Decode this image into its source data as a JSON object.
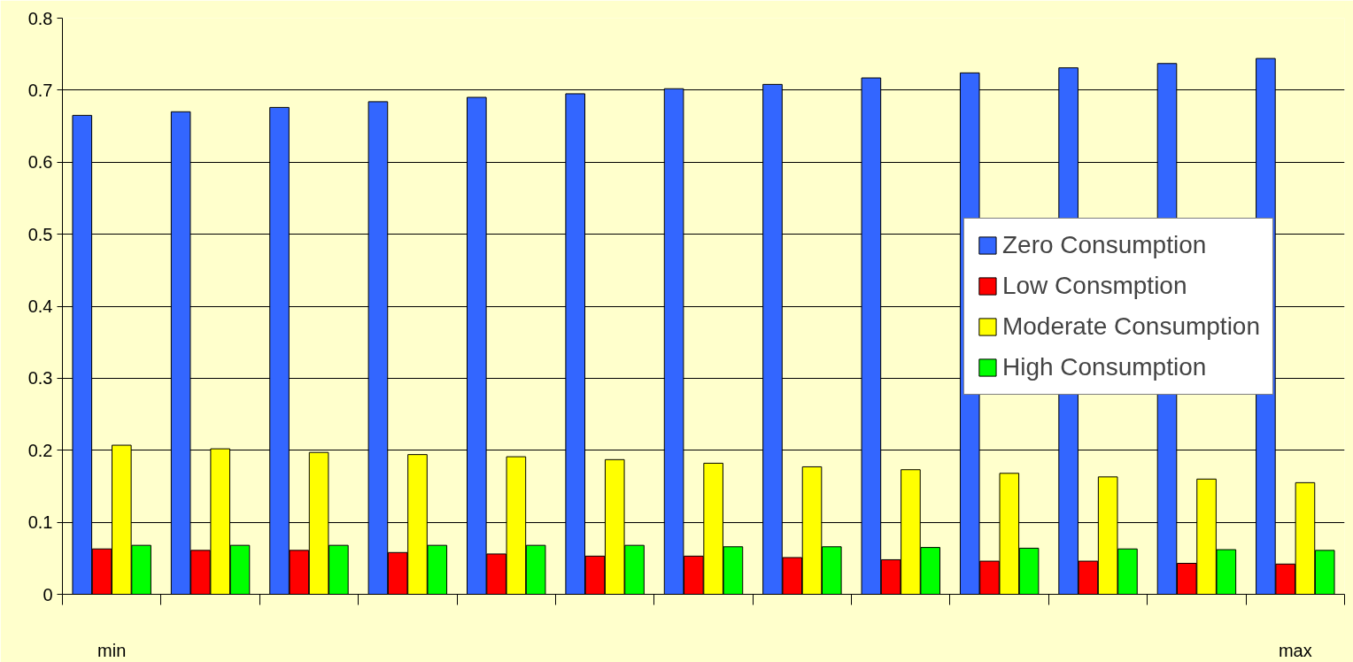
{
  "chart_data": {
    "type": "bar",
    "categories": [
      "min",
      null,
      null,
      null,
      null,
      null,
      null,
      null,
      null,
      null,
      null,
      null,
      "max"
    ],
    "series": [
      {
        "name": "Zero Consumption",
        "color": "#3366ff",
        "values": [
          0.665,
          0.67,
          0.676,
          0.684,
          0.69,
          0.695,
          0.702,
          0.708,
          0.717,
          0.724,
          0.731,
          0.737,
          0.744
        ]
      },
      {
        "name": "Low Consmption",
        "color": "#ff0000",
        "values": [
          0.063,
          0.061,
          0.061,
          0.058,
          0.056,
          0.053,
          0.053,
          0.051,
          0.048,
          0.046,
          0.046,
          0.043,
          0.042
        ]
      },
      {
        "name": "Moderate Consumption",
        "color": "#ffff00",
        "values": [
          0.207,
          0.202,
          0.197,
          0.194,
          0.191,
          0.187,
          0.182,
          0.177,
          0.173,
          0.168,
          0.163,
          0.16,
          0.155
        ]
      },
      {
        "name": "High Consumption",
        "color": "#00ff00",
        "values": [
          0.068,
          0.068,
          0.068,
          0.068,
          0.068,
          0.068,
          0.066,
          0.066,
          0.065,
          0.064,
          0.063,
          0.062,
          0.061
        ]
      }
    ],
    "ylim": [
      0,
      0.8
    ],
    "yticks": [
      0,
      {
        "value": 0.1,
        "label": "0.1"
      },
      {
        "value": 0.2,
        "label": "0.2"
      },
      {
        "value": 0.3,
        "label": "0.3"
      },
      {
        "value": 0.4,
        "label": "0.4"
      },
      {
        "value": 0.5,
        "label": "0.5"
      },
      {
        "value": 0.6,
        "label": "0.6"
      },
      {
        "value": 0.7,
        "label": "0.7"
      },
      {
        "value": 0.8,
        "label": "0.8"
      }
    ],
    "grid": "y",
    "legend": "right"
  }
}
